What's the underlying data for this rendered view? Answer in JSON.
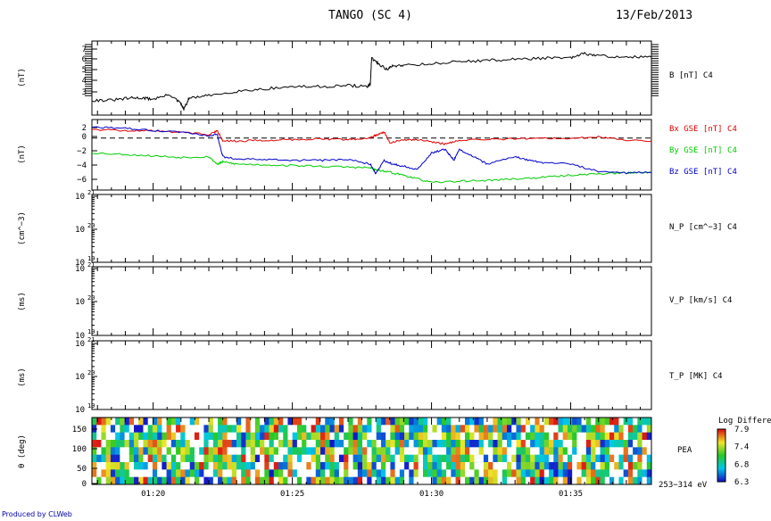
{
  "header": {
    "title": "TANGO (SC 4)",
    "date": "13/Feb/2013"
  },
  "footer": {
    "credit": "Produced by CLWeb"
  },
  "time_axis": {
    "range_min": [
      1,
      17.8
    ],
    "range_max": [
      1,
      37.9
    ],
    "ticks": [
      {
        "t": [
          1,
          20
        ],
        "label": "01:20"
      },
      {
        "t": [
          1,
          25
        ],
        "label": "01:25"
      },
      {
        "t": [
          1,
          30
        ],
        "label": "01:30"
      },
      {
        "t": [
          1,
          35
        ],
        "label": "01:35"
      }
    ]
  },
  "colorbar": {
    "title": "Log Differenti",
    "range": [
      6.3,
      7.9
    ],
    "ticks": [
      "7.9",
      "7.4",
      "6.8",
      "6.3"
    ]
  },
  "chart_data": [
    {
      "type": "line",
      "id": "b-total",
      "ylabel": "(nT)",
      "ylim": [
        1.5,
        8
      ],
      "yticks": [
        "3",
        "4",
        "5",
        "6",
        "7"
      ],
      "series": [
        {
          "name": "B [nT] C4",
          "color": "#000000",
          "x": [
            17.8,
            18.5,
            19.2,
            19.6,
            20.0,
            20.6,
            21.0,
            21.1,
            21.3,
            22.0,
            23.0,
            24.0,
            25.0,
            26.0,
            27.0,
            27.7,
            27.8,
            27.85,
            28.1,
            28.4,
            28.6,
            29.0,
            30.0,
            31.0,
            32.0,
            33.0,
            34.0,
            35.0,
            35.5,
            36.0,
            37.0,
            37.9
          ],
          "y": [
            2.8,
            2.8,
            3.0,
            3.0,
            2.9,
            3.3,
            2.5,
            2.0,
            3.0,
            3.2,
            3.6,
            3.8,
            4.0,
            4.0,
            4.1,
            4.0,
            4.2,
            6.5,
            6.0,
            5.5,
            5.8,
            5.9,
            6.0,
            6.2,
            6.3,
            6.4,
            6.5,
            6.5,
            6.9,
            6.7,
            6.6,
            6.6
          ]
        }
      ]
    },
    {
      "type": "line",
      "id": "b-components",
      "ylabel": "(nT)",
      "ylim": [
        -7,
        2.5
      ],
      "yticks": [
        "2",
        "0",
        "−2",
        "−4",
        "−6"
      ],
      "series": [
        {
          "name": "Bx GSE [nT] C4",
          "color": "#e00000",
          "x": [
            17.8,
            19.0,
            20.0,
            21.0,
            22.0,
            22.3,
            22.5,
            23.0,
            24.0,
            25.0,
            26.0,
            27.0,
            27.8,
            28.0,
            28.3,
            28.5,
            29.0,
            29.5,
            30.0,
            30.5,
            31.0,
            32.0,
            33.0,
            34.0,
            35.0,
            36.0,
            37.0,
            37.9
          ],
          "y": [
            1.2,
            1.0,
            1.0,
            0.8,
            0.5,
            1.0,
            -0.3,
            -0.4,
            -0.3,
            -0.2,
            -0.1,
            -0.2,
            0.0,
            0.4,
            0.8,
            -0.6,
            -0.3,
            -0.2,
            -0.5,
            -0.8,
            -0.3,
            -0.2,
            -0.1,
            0.0,
            -0.1,
            0.2,
            -0.3,
            -0.4
          ]
        },
        {
          "name": "By GSE [nT] C4",
          "color": "#00cc00",
          "x": [
            17.8,
            19.0,
            20.0,
            21.0,
            22.0,
            22.3,
            22.5,
            23.0,
            24.0,
            25.0,
            26.0,
            27.0,
            27.8,
            28.0,
            28.5,
            29.0,
            29.5,
            30.0,
            31.0,
            32.0,
            33.0,
            34.0,
            35.0,
            36.0,
            37.0,
            37.9
          ],
          "y": [
            -2.0,
            -2.2,
            -2.4,
            -2.6,
            -2.5,
            -3.5,
            -3.2,
            -3.5,
            -3.6,
            -3.7,
            -3.8,
            -3.9,
            -4.0,
            -4.3,
            -4.6,
            -5.0,
            -5.5,
            -6.0,
            -5.8,
            -5.7,
            -5.5,
            -5.3,
            -5.0,
            -4.8,
            -4.7,
            -4.6
          ]
        },
        {
          "name": "Bz GSE [nT] C4",
          "color": "#0000cc",
          "x": [
            17.8,
            19.0,
            20.0,
            21.0,
            22.0,
            22.3,
            22.5,
            23.0,
            24.0,
            25.0,
            26.0,
            27.0,
            27.8,
            28.0,
            28.3,
            28.6,
            29.0,
            29.5,
            30.0,
            30.5,
            30.8,
            31.0,
            31.5,
            32.0,
            33.0,
            33.5,
            34.0,
            35.0,
            36.0,
            37.0,
            37.9
          ],
          "y": [
            1.5,
            1.3,
            1.0,
            0.8,
            0.3,
            0.5,
            -2.5,
            -2.8,
            -2.9,
            -3.0,
            -3.0,
            -2.9,
            -3.5,
            -4.8,
            -3.0,
            -3.5,
            -3.8,
            -4.2,
            -2.0,
            -1.5,
            -3.0,
            -1.5,
            -2.5,
            -3.5,
            -2.5,
            -3.0,
            -3.3,
            -3.5,
            -4.5,
            -4.7,
            -4.6
          ]
        }
      ],
      "reference_line": 0
    },
    {
      "type": "line",
      "id": "n-p",
      "ylabel": "(cm^−3)",
      "log": true,
      "yticks": [
        "10",
        "10",
        "10"
      ],
      "ytick_exponents": [
        "21",
        "20",
        "19"
      ],
      "series": [
        {
          "name": "N_P [cm^−3] C4",
          "color": "#000000",
          "x": [],
          "y": []
        }
      ]
    },
    {
      "type": "line",
      "id": "v-p",
      "ylabel": "(ms)",
      "log": true,
      "yticks": [
        "10",
        "10",
        "10"
      ],
      "ytick_exponents": [
        "21",
        "20",
        "19"
      ],
      "series": [
        {
          "name": "V_P [km/s] C4",
          "color": "#000000",
          "x": [],
          "y": []
        }
      ]
    },
    {
      "type": "line",
      "id": "t-p",
      "ylabel": "(ms)",
      "log": true,
      "yticks": [
        "10",
        "10",
        "10"
      ],
      "ytick_exponents": [
        "21",
        "20",
        "19"
      ],
      "series": [
        {
          "name": "T_P [MK] C4",
          "color": "#000000",
          "x": [],
          "y": []
        }
      ]
    },
    {
      "type": "heatmap",
      "id": "pea",
      "ylabel": "θ (deg)",
      "ylim": [
        0,
        180
      ],
      "yticks": [
        "150",
        "100",
        "50",
        "0"
      ],
      "label": "PEA",
      "energy_label": "253−314 eV",
      "value_range": [
        6.3,
        7.9
      ],
      "note": "pitch-angle distribution, noisy random-like pattern",
      "columns": 120,
      "rows": 9
    }
  ]
}
